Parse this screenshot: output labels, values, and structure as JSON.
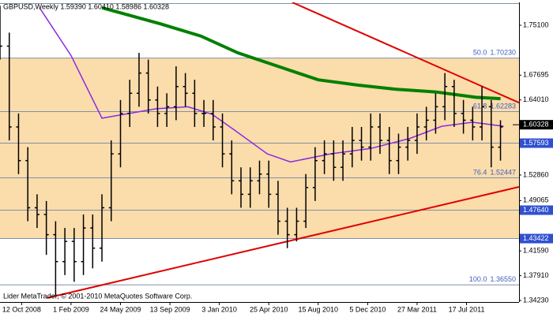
{
  "chart_data": {
    "type": "ohlc",
    "title": "GBPUSD,Weekly  1.59390 1.60410 1.58986 1.60328",
    "footer": "Lider MetaTrader, © 2001-2010 MetaQuotes Software Corp.",
    "xlim": [
      -7,
      161
    ],
    "ylim": [
      1.34,
      1.785
    ],
    "xticks": [
      {
        "value": 0,
        "label": "12 Oct 2008"
      },
      {
        "value": 16,
        "label": "1 Feb 2009"
      },
      {
        "value": 32,
        "label": "24 May 2009"
      },
      {
        "value": 48,
        "label": "13 Sep 2009"
      },
      {
        "value": 64,
        "label": "3 Jan 2010"
      },
      {
        "value": 80,
        "label": "25 Apr 2010"
      },
      {
        "value": 96,
        "label": "15 Aug 2010"
      },
      {
        "value": 112,
        "label": "5 Dec 2010"
      },
      {
        "value": 128,
        "label": "27 Mar 2011"
      },
      {
        "value": 144,
        "label": "17 Jul 2011"
      }
    ],
    "yticks": [
      {
        "value": 1.751,
        "label": "1.75100"
      },
      1.67695,
      {
        "value": 1.6401,
        "label": "1.64010"
      },
      {
        "value": 1.5286,
        "label": "1.52860"
      },
      1.49065,
      {
        "value": 1.4159,
        "label": "1.41590"
      },
      {
        "value": 1.3791,
        "label": "1.37910"
      },
      {
        "value": 1.3423,
        "label": "1.34230"
      }
    ],
    "band": [
      1.4342,
      1.7023
    ],
    "band_color": "#fbdcab",
    "hlines": [
      {
        "value": 1.7023,
        "label": "1.70230",
        "level": "50.0"
      },
      {
        "value": 1.62283,
        "label": "1.62283",
        "level": "61.8"
      },
      {
        "value": 1.57593,
        "label": "1.57593",
        "boxed": true
      },
      {
        "value": 1.52447,
        "label": "1.52447",
        "level": "76.4"
      },
      {
        "value": 1.4764,
        "label": "1.47640",
        "boxed": true
      },
      {
        "value": 1.43422,
        "label": "1.43422",
        "boxed": true
      },
      {
        "value": 1.3655,
        "label": "1.36550",
        "level": "100.0"
      }
    ],
    "current": {
      "value": 1.60328,
      "label": "1.60328"
    },
    "x": [
      -7,
      -4,
      -1,
      2,
      5,
      8,
      11,
      14,
      17,
      20,
      23,
      26,
      29,
      32,
      35,
      38,
      41,
      44,
      47,
      50,
      53,
      56,
      59,
      62,
      65,
      68,
      71,
      74,
      77,
      80,
      83,
      86,
      89,
      92,
      95,
      98,
      101,
      104,
      107,
      110,
      113,
      116,
      119,
      122,
      125,
      128,
      131,
      134,
      137,
      140,
      143,
      146,
      149,
      152,
      155
    ],
    "open": [
      1.76,
      1.72,
      1.6,
      1.55,
      1.48,
      1.47,
      1.44,
      1.4,
      1.43,
      1.4,
      1.45,
      1.42,
      1.48,
      1.56,
      1.62,
      1.65,
      1.68,
      1.64,
      1.62,
      1.63,
      1.66,
      1.65,
      1.62,
      1.62,
      1.6,
      1.56,
      1.52,
      1.5,
      1.52,
      1.53,
      1.5,
      1.46,
      1.44,
      1.46,
      1.51,
      1.55,
      1.56,
      1.54,
      1.56,
      1.58,
      1.57,
      1.6,
      1.58,
      1.55,
      1.57,
      1.58,
      1.6,
      1.61,
      1.63,
      1.66,
      1.62,
      1.61,
      1.6,
      1.63,
      1.57
    ],
    "high": [
      1.78,
      1.74,
      1.62,
      1.57,
      1.5,
      1.49,
      1.46,
      1.45,
      1.45,
      1.47,
      1.47,
      1.5,
      1.58,
      1.64,
      1.67,
      1.71,
      1.7,
      1.66,
      1.65,
      1.69,
      1.68,
      1.67,
      1.64,
      1.64,
      1.62,
      1.58,
      1.54,
      1.54,
      1.55,
      1.55,
      1.52,
      1.48,
      1.48,
      1.53,
      1.57,
      1.58,
      1.58,
      1.58,
      1.6,
      1.6,
      1.62,
      1.62,
      1.6,
      1.59,
      1.6,
      1.62,
      1.63,
      1.65,
      1.68,
      1.67,
      1.64,
      1.63,
      1.66,
      1.64,
      1.61
    ],
    "low": [
      1.7,
      1.58,
      1.53,
      1.46,
      1.45,
      1.41,
      1.35,
      1.38,
      1.37,
      1.38,
      1.39,
      1.4,
      1.46,
      1.54,
      1.6,
      1.63,
      1.62,
      1.6,
      1.6,
      1.61,
      1.63,
      1.6,
      1.6,
      1.58,
      1.54,
      1.5,
      1.48,
      1.48,
      1.5,
      1.48,
      1.44,
      1.42,
      1.43,
      1.45,
      1.49,
      1.53,
      1.52,
      1.52,
      1.54,
      1.55,
      1.55,
      1.56,
      1.53,
      1.53,
      1.55,
      1.56,
      1.58,
      1.59,
      1.61,
      1.6,
      1.59,
      1.58,
      1.58,
      1.54,
      1.55
    ],
    "close": [
      1.72,
      1.6,
      1.55,
      1.48,
      1.47,
      1.44,
      1.4,
      1.43,
      1.4,
      1.45,
      1.42,
      1.48,
      1.56,
      1.62,
      1.65,
      1.68,
      1.64,
      1.62,
      1.63,
      1.66,
      1.65,
      1.62,
      1.62,
      1.6,
      1.56,
      1.52,
      1.5,
      1.52,
      1.53,
      1.5,
      1.46,
      1.44,
      1.46,
      1.51,
      1.55,
      1.56,
      1.54,
      1.56,
      1.58,
      1.57,
      1.6,
      1.58,
      1.55,
      1.57,
      1.58,
      1.6,
      1.61,
      1.63,
      1.66,
      1.62,
      1.61,
      1.6,
      1.63,
      1.57,
      1.6
    ],
    "bar_color": "#000000",
    "lines": [
      {
        "color": "#008000",
        "width": 4,
        "x": [
          26,
          45,
          58,
          70,
          83,
          96,
          109,
          121,
          134,
          147,
          155
        ],
        "values": [
          1.777,
          1.753,
          1.735,
          1.71,
          1.69,
          1.67,
          1.662,
          1.656,
          1.652,
          1.644,
          1.642
        ]
      },
      {
        "color": "#8a2be2",
        "width": 1.5,
        "x": [
          5.8,
          16,
          26,
          33.5,
          43.6,
          53.8,
          61.6,
          69,
          79.5,
          87,
          100,
          113,
          125.7,
          136,
          146,
          156
        ],
        "values": [
          1.777,
          1.706,
          1.613,
          1.619,
          1.627,
          1.63,
          1.619,
          1.595,
          1.56,
          1.548,
          1.56,
          1.568,
          1.583,
          1.601,
          1.607,
          1.601
        ]
      },
      {
        "color": "#e00000",
        "width": 2,
        "x": [
          87.6,
          161
        ],
        "values": [
          1.785,
          1.636
        ]
      },
      {
        "color": "#e00000",
        "width": 2,
        "x": [
          8.2,
          161
        ],
        "values": [
          1.346,
          1.511
        ]
      }
    ]
  }
}
